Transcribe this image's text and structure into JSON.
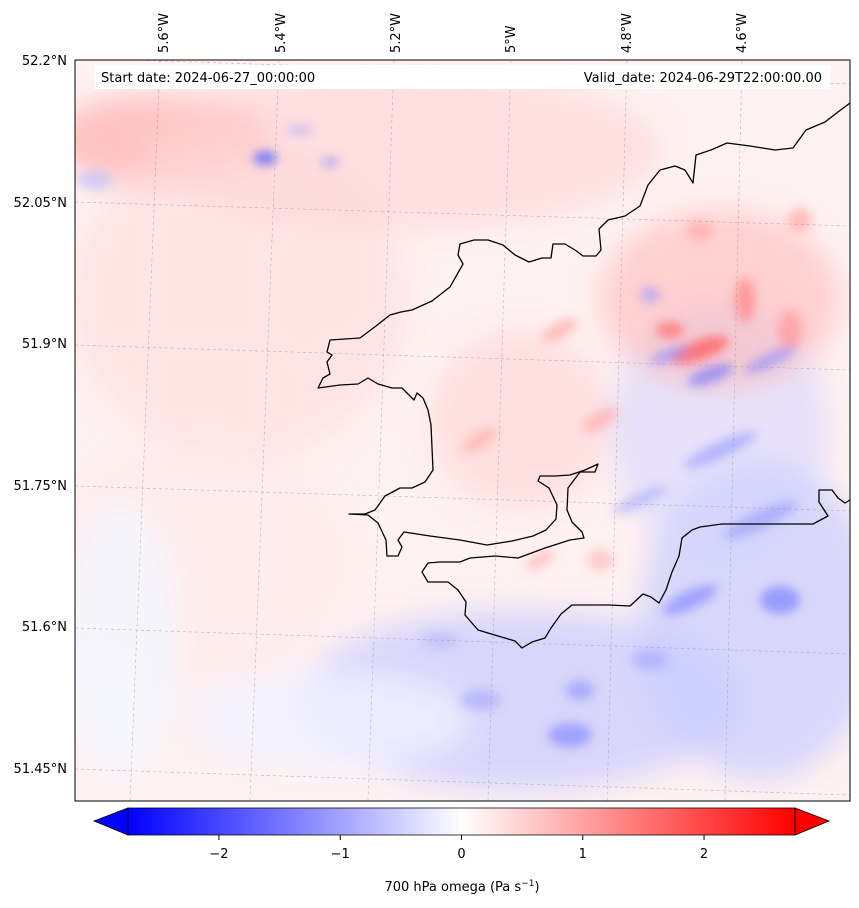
{
  "map": {
    "start_date_label": "Start date: 2024-06-27_00:00:00",
    "valid_date_label": "Valid_date: 2024-06-29T22:00:00.00",
    "longitude_labels": [
      "5.6°W",
      "5.4°W",
      "5.2°W",
      "5°W",
      "4.8°W",
      "4.6°W"
    ],
    "latitude_labels": [
      "52.2°N",
      "52.05°N",
      "51.9°N",
      "51.75°N",
      "51.6°N",
      "51.45°N"
    ],
    "field": "700 hPa omega"
  },
  "colorbar": {
    "ticks": [
      "−2",
      "−1",
      "0",
      "1",
      "2"
    ],
    "label_main": "700 hPa omega (Pa s",
    "label_exp": "−1",
    "label_close": ")",
    "vmin": -2.75,
    "vmax": 2.75,
    "colors": {
      "negative": "#0000ff",
      "zero": "#ffffff",
      "positive": "#ff0000"
    }
  }
}
